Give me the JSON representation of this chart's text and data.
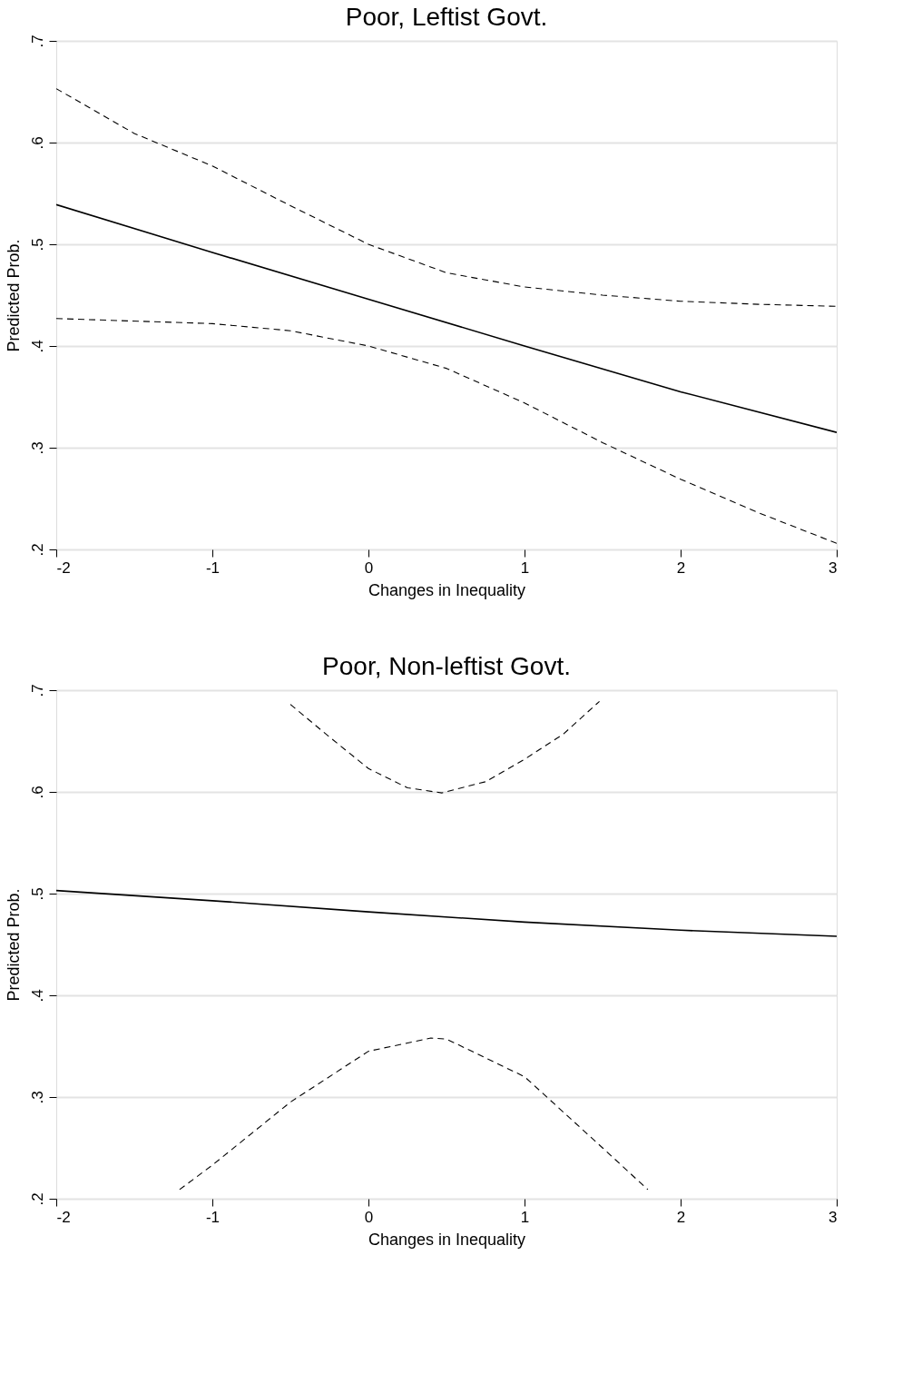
{
  "chart_data": [
    {
      "type": "line",
      "title": "Poor, Leftist Govt.",
      "xlabel": "Changes in Inequality",
      "ylabel": "Predicted Prob.",
      "xlim": [
        -2,
        3
      ],
      "xticks": [
        -2,
        -1,
        0,
        1,
        2,
        3
      ],
      "ylim": [
        0.2,
        0.7
      ],
      "yticks": [
        {
          "value": 0.2,
          "label": ".2"
        },
        {
          "value": 0.3,
          "label": ".3"
        },
        {
          "value": 0.4,
          "label": ".4"
        },
        {
          "value": 0.5,
          "label": ".5"
        },
        {
          "value": 0.6,
          "label": ".6"
        },
        {
          "value": 0.7,
          "label": ".7"
        }
      ],
      "grid": "y",
      "series": [
        {
          "color": "#000000",
          "line_style": "solid",
          "x": [
            -2,
            -1,
            0,
            1,
            2,
            3
          ],
          "values": [
            0.539,
            0.492,
            0.446,
            0.4,
            0.355,
            0.315
          ]
        },
        {
          "color": "#000000",
          "line_style": "dashed",
          "x": [
            -2,
            -1.5,
            -1,
            -0.5,
            0,
            0.5,
            1,
            1.5,
            2,
            2.5,
            3
          ],
          "values": [
            0.653,
            0.609,
            0.577,
            0.538,
            0.5,
            0.472,
            0.458,
            0.45,
            0.444,
            0.441,
            0.439
          ]
        },
        {
          "color": "#000000",
          "line_style": "dashed",
          "x": [
            -2,
            -1,
            -0.5,
            0,
            0.5,
            1,
            1.5,
            2,
            2.5,
            3
          ],
          "values": [
            0.427,
            0.422,
            0.415,
            0.4,
            0.378,
            0.344,
            0.305,
            0.269,
            0.236,
            0.206
          ]
        }
      ]
    },
    {
      "type": "line",
      "title": "Poor, Non-leftist Govt.",
      "xlabel": "Changes in Inequality",
      "ylabel": "Predicted Prob.",
      "xlim": [
        -2,
        3
      ],
      "xticks": [
        -2,
        -1,
        0,
        1,
        2,
        3
      ],
      "ylim": [
        0.2,
        0.7
      ],
      "yticks": [
        {
          "value": 0.2,
          "label": ".2"
        },
        {
          "value": 0.3,
          "label": ".3"
        },
        {
          "value": 0.4,
          "label": ".4"
        },
        {
          "value": 0.5,
          "label": ".5"
        },
        {
          "value": 0.6,
          "label": ".6"
        },
        {
          "value": 0.7,
          "label": ".7"
        }
      ],
      "grid": "y",
      "series": [
        {
          "color": "#000000",
          "line_style": "solid",
          "x": [
            -2,
            -1,
            0,
            1,
            2,
            3
          ],
          "values": [
            0.503,
            0.493,
            0.482,
            0.472,
            0.464,
            0.458
          ]
        },
        {
          "color": "#000000",
          "line_style": "dashed",
          "x": [
            -0.5,
            -0.25,
            0,
            0.25,
            0.47,
            0.75,
            1,
            1.25,
            1.48
          ],
          "values": [
            0.686,
            0.654,
            0.623,
            0.604,
            0.599,
            0.61,
            0.632,
            0.657,
            0.689
          ]
        },
        {
          "color": "#000000",
          "line_style": "dashed",
          "x": [
            -1.21,
            -1,
            -0.5,
            0,
            0.4,
            0.5,
            1,
            1.5,
            1.79
          ],
          "values": [
            0.209,
            0.233,
            0.295,
            0.345,
            0.358,
            0.357,
            0.32,
            0.25,
            0.209
          ]
        }
      ]
    }
  ]
}
